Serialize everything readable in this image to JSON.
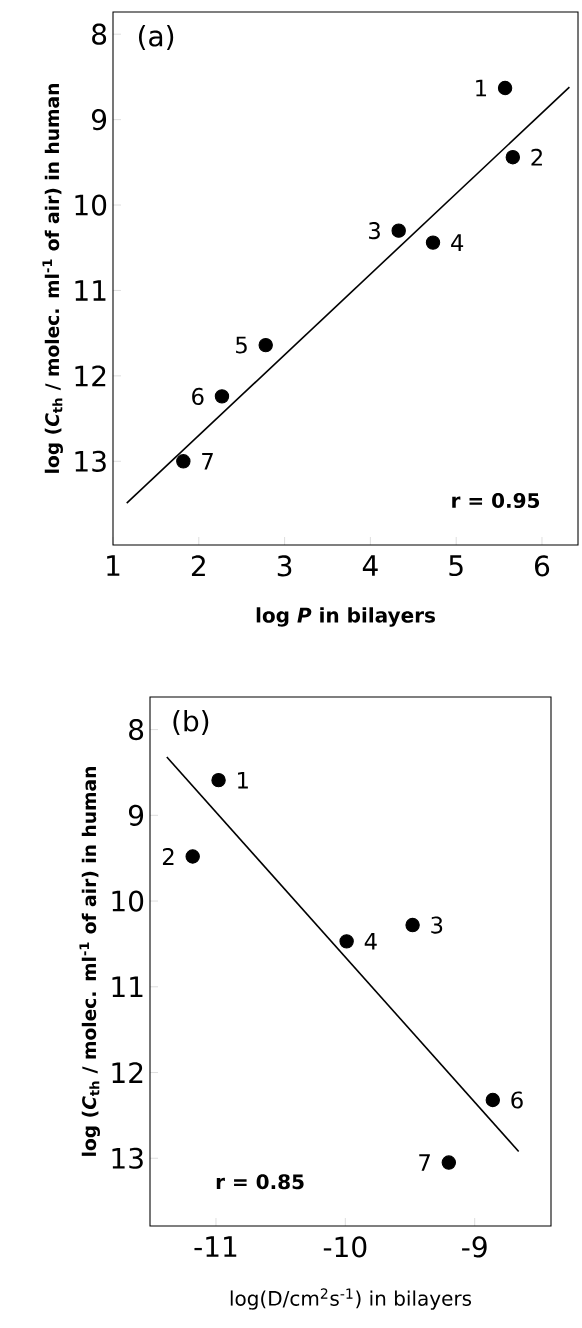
{
  "chart_data": [
    {
      "type": "scatter",
      "title": "(a)",
      "xlabel": "log *P* in bilayers",
      "ylabel": "log (*C*$_{th}$ / molec. ml$^{-1}$ of air) in human",
      "xlim": [
        1,
        6.42
      ],
      "ylim": [
        13.98,
        7.74
      ],
      "xticks": [
        1,
        2,
        3,
        4,
        5,
        6
      ],
      "yticks": [
        8,
        9,
        10,
        11,
        12,
        13
      ],
      "series": [
        {
          "marker": "circle",
          "color": "#000000",
          "x": [
            5.57,
            5.66,
            4.33,
            4.73,
            2.78,
            2.27,
            1.82
          ],
          "values": [
            8.63,
            9.44,
            10.3,
            10.44,
            11.64,
            12.24,
            13.0
          ]
        },
        {
          "type": "line",
          "color": "#000000",
          "line_style": "solid",
          "x": [
            1.16,
            6.32
          ],
          "values": [
            13.49,
            8.62
          ]
        }
      ],
      "annotations": [
        {
          "text": "1",
          "x": 5.57,
          "y": 8.63
        },
        {
          "text": "2",
          "x": 5.66,
          "y": 9.44
        },
        {
          "text": "3",
          "x": 4.33,
          "y": 10.3
        },
        {
          "text": "4",
          "x": 4.73,
          "y": 10.44
        },
        {
          "text": "5",
          "x": 2.78,
          "y": 11.64
        },
        {
          "text": "6",
          "x": 2.27,
          "y": 12.24
        },
        {
          "text": "7",
          "x": 1.82,
          "y": 13.0
        },
        "r = 0.95"
      ]
    },
    {
      "type": "scatter",
      "title": "(b)",
      "xlabel": "log(D/cm$^{2}$s$^{-1}$) in bilayers",
      "ylabel": "log (*C*$_{th}$ / molec. ml$^{-1}$ of air) in human",
      "xlim": [
        -11.51,
        -8.41
      ],
      "ylim": [
        13.79,
        7.62
      ],
      "xticks": [
        -11,
        -10,
        -9
      ],
      "yticks": [
        8,
        9,
        10,
        11,
        12,
        13
      ],
      "series": [
        {
          "marker": "circle",
          "color": "#000000",
          "x": [
            -10.98,
            -11.18,
            -9.48,
            -9.99,
            -8.86,
            -9.2
          ],
          "values": [
            8.59,
            9.48,
            10.28,
            10.47,
            12.32,
            13.05
          ]
        },
        {
          "type": "line",
          "color": "#000000",
          "line_style": "solid",
          "x": [
            -11.38,
            -8.66
          ],
          "values": [
            8.32,
            12.92
          ]
        }
      ],
      "annotations": [
        {
          "text": "1",
          "x": -10.98,
          "y": 8.59
        },
        {
          "text": "2",
          "x": -11.18,
          "y": 9.48
        },
        {
          "text": "3",
          "x": -9.48,
          "y": 10.28
        },
        {
          "text": "4",
          "x": -9.99,
          "y": 10.47
        },
        {
          "text": "6",
          "x": -8.86,
          "y": 12.32
        },
        {
          "text": "7",
          "x": -9.2,
          "y": 13.05
        },
        "r = 0.85"
      ]
    }
  ]
}
